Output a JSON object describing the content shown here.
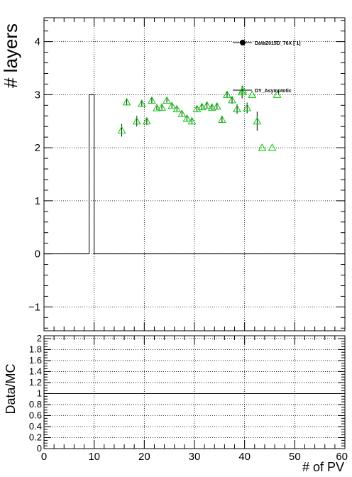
{
  "chart_data": [
    {
      "type": "scatter",
      "ylabel": "# layers",
      "xlim": [
        0,
        60
      ],
      "ylim": [
        -1.45,
        4.45
      ],
      "x_ticks": [
        "0",
        "10",
        "20",
        "30",
        "40",
        "50",
        "60"
      ],
      "y_ticks": [
        "−1",
        "0",
        "1",
        "2",
        "3",
        "4"
      ],
      "y_tick_values": [
        -1,
        0,
        1,
        2,
        3,
        4
      ],
      "grid": true,
      "legend": {
        "placement": "top-right",
        "entries": [
          {
            "label": "Data2015D_76X [       1]",
            "marker": "filled-circle",
            "color": "#000000"
          },
          {
            "label": "DY_Asymptotic",
            "marker": "open-triangle",
            "color": "#00cc00"
          }
        ]
      },
      "histogram": {
        "name": "Data",
        "color": "#000000",
        "bins": [
          {
            "x0": 0,
            "x1": 9,
            "y": 0
          },
          {
            "x0": 9,
            "x1": 10,
            "y": 3
          },
          {
            "x0": 10,
            "x1": 60,
            "y": 0
          }
        ]
      },
      "series": [
        {
          "name": "DY_Asymptotic",
          "color": "#00cc00",
          "marker": "open-triangle",
          "x": [
            15.5,
            16.5,
            18.5,
            19.5,
            20.5,
            21.5,
            22.5,
            23.5,
            24.5,
            25.5,
            26.5,
            27.5,
            28.5,
            29.5,
            30.5,
            31.5,
            32.5,
            33.5,
            34.5,
            35.5,
            36.5,
            37.5,
            38.5,
            39.5,
            40.5,
            41.5,
            42.5,
            43.5,
            45.5,
            46.5
          ],
          "y": [
            2.33,
            2.86,
            2.5,
            2.83,
            2.5,
            2.89,
            2.75,
            2.76,
            2.89,
            2.79,
            2.73,
            2.64,
            2.55,
            2.5,
            2.73,
            2.77,
            2.8,
            2.76,
            2.78,
            2.53,
            3.0,
            2.9,
            2.73,
            3.05,
            2.75,
            3.0,
            2.5,
            2.0,
            2.0,
            3.0
          ],
          "err": [
            0.12,
            0.06,
            0.1,
            0.05,
            0.07,
            0.05,
            0.04,
            0.04,
            0.04,
            0.04,
            0.04,
            0.04,
            0.05,
            0.05,
            0.05,
            0.05,
            0.05,
            0.05,
            0.06,
            0.06,
            0.05,
            0.07,
            0.09,
            0.12,
            0.1,
            0.0,
            0.18,
            0.0,
            0.0,
            0.0
          ]
        }
      ]
    },
    {
      "type": "line",
      "ylabel": "Data/MC",
      "xlabel": "# of PV",
      "xlim": [
        0,
        60
      ],
      "ylim": [
        0,
        2.05
      ],
      "x_ticks": [
        "0",
        "10",
        "20",
        "30",
        "40",
        "50",
        "60"
      ],
      "y_ticks": [
        "0",
        "0.2",
        "0.4",
        "0.6",
        "0.8",
        "1",
        "1.2",
        "1.4",
        "1.6",
        "1.8",
        "2"
      ],
      "y_tick_values": [
        0,
        0.2,
        0.4,
        0.6,
        0.8,
        1,
        1.2,
        1.4,
        1.6,
        1.8,
        2
      ],
      "grid": true,
      "reference_line": 1
    }
  ]
}
